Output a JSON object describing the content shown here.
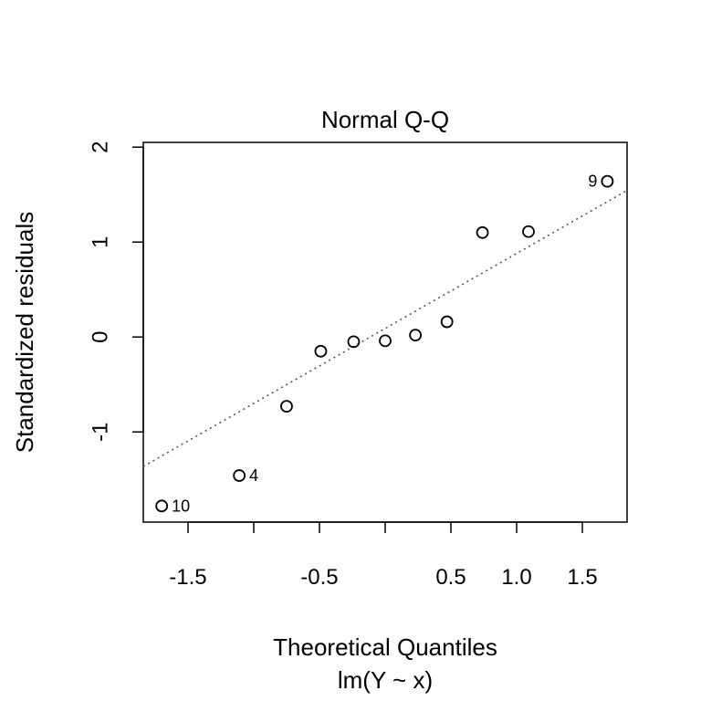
{
  "chart_data": {
    "type": "scatter",
    "title": "Normal Q-Q",
    "xlabel": "Theoretical Quantiles",
    "subtitle": "lm(Y ~ x)",
    "ylabel": "Standardized residuals",
    "xlim": [
      -1.84,
      1.84
    ],
    "ylim": [
      -1.95,
      2.05
    ],
    "x_ticks": [
      -1.5,
      -1.0,
      -0.5,
      0.0,
      0.5,
      1.0,
      1.5
    ],
    "x_tick_labels": [
      "-1.5",
      "",
      "-0.5",
      "",
      "0.5",
      "1.0",
      "1.5"
    ],
    "y_ticks": [
      -1,
      0,
      1,
      2
    ],
    "y_tick_labels": [
      "-1",
      "0",
      "1",
      "2"
    ],
    "points": [
      {
        "x": -1.7,
        "y": -1.78,
        "label": "10"
      },
      {
        "x": -1.11,
        "y": -1.46,
        "label": "4"
      },
      {
        "x": -0.75,
        "y": -0.73,
        "label": ""
      },
      {
        "x": -0.49,
        "y": -0.15,
        "label": ""
      },
      {
        "x": -0.24,
        "y": -0.05,
        "label": ""
      },
      {
        "x": 0.0,
        "y": -0.04,
        "label": ""
      },
      {
        "x": 0.23,
        "y": 0.02,
        "label": ""
      },
      {
        "x": 0.47,
        "y": 0.16,
        "label": ""
      },
      {
        "x": 0.74,
        "y": 1.1,
        "label": ""
      },
      {
        "x": 1.09,
        "y": 1.11,
        "label": ""
      },
      {
        "x": 1.69,
        "y": 1.64,
        "label": "9"
      }
    ],
    "reference_line": {
      "intercept": 0.09,
      "slope": 0.79,
      "style": "dotted"
    },
    "grid": false
  }
}
